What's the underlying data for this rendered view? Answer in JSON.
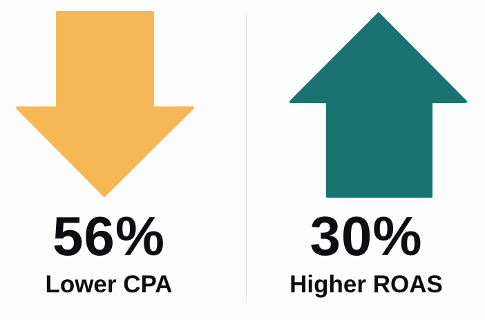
{
  "metrics": [
    {
      "value": "56%",
      "label": "Lower CPA",
      "direction": "down",
      "icon": "arrow-down-icon",
      "color": "#F6B856"
    },
    {
      "value": "30%",
      "label": "Higher ROAS",
      "direction": "up",
      "icon": "arrow-up-icon",
      "color": "#187371"
    }
  ]
}
